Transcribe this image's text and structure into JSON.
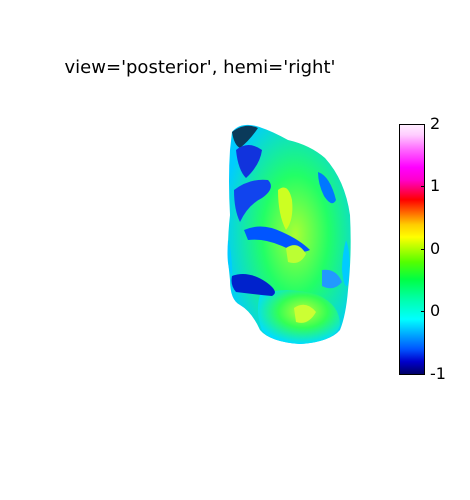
{
  "chart_data": {
    "type": "heatmap",
    "title": "view='posterior', hemi='right'",
    "colorbar": {
      "ticks": [
        "2",
        "1",
        "0",
        "0",
        "-1"
      ],
      "colormap": "nipy_spectral"
    },
    "colors": {
      "dark_blue": "#0000cc",
      "blue": "#0066ff",
      "cyan": "#00ddff",
      "green": "#33ff33",
      "yellow_green": "#ccff33",
      "background": "#ffffff"
    }
  }
}
